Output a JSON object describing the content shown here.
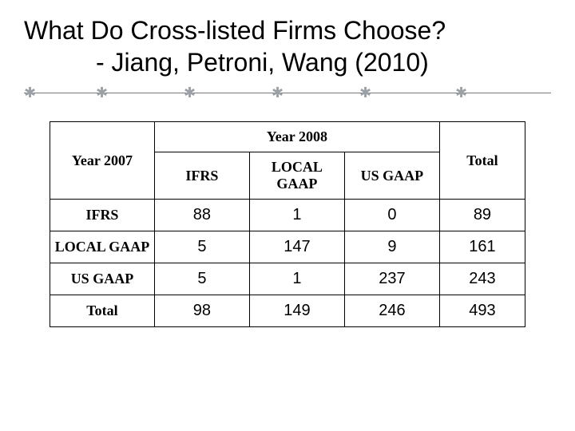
{
  "title_line1": "What Do Cross-listed Firms Choose?",
  "title_line2": "- Jiang, Petroni, Wang (2010)",
  "table": {
    "row_group_label": "Year 2007",
    "col_group_label": "Year 2008",
    "total_label": "Total",
    "sub_columns": [
      "IFRS",
      "LOCAL GAAP",
      "US GAAP"
    ],
    "row_labels": [
      "IFRS",
      "LOCAL GAAP",
      "US GAAP",
      "Total"
    ],
    "cells": [
      [
        88,
        1,
        0,
        89
      ],
      [
        5,
        147,
        9,
        161
      ],
      [
        5,
        1,
        237,
        243
      ],
      [
        98,
        149,
        246,
        493
      ]
    ]
  },
  "style": {
    "title_fontsize_pt": 24,
    "title_color": "#000000",
    "cell_header_font": "Georgia",
    "cell_number_font": "Segoe UI",
    "border_color": "#000000",
    "background_color": "#ffffff",
    "divider_color": "#7a7a7a",
    "asterisk_color": "#9aa0a6"
  }
}
